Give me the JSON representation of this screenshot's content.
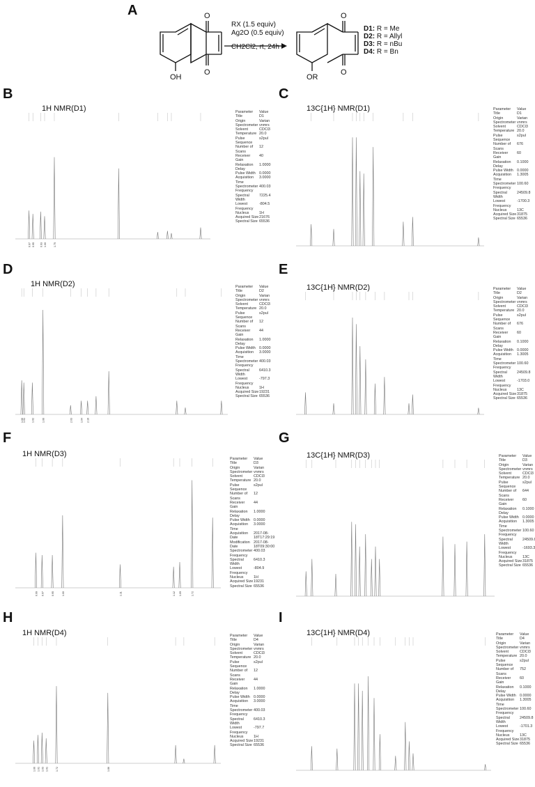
{
  "figure": {
    "panel_a": {
      "letter": "A",
      "reagent_line1": "RX (1.5 equiv)",
      "reagent_line2": "Ag2O (0.5 equiv)",
      "reagent_line3": "CH2Cl2, rt, 24h",
      "reactant_labels": {
        "o_top": "O",
        "o_bottom": "O",
        "oh": "OH"
      },
      "product_labels": {
        "o_top": "O",
        "o_bottom": "O",
        "or": "OR"
      },
      "products": [
        {
          "id": "D1:",
          "desc": "R = Me"
        },
        {
          "id": "D2:",
          "desc": "R = Allyl"
        },
        {
          "id": "D3:",
          "desc": "R = nBu"
        },
        {
          "id": "D4:",
          "desc": "R = Bn"
        }
      ]
    },
    "panels": [
      {
        "letter": "B",
        "title": "1H NMR(D1)",
        "params": [
          [
            "Parameter",
            "Value"
          ],
          [
            "Title",
            "D1"
          ],
          [
            "Origin",
            "Varian"
          ],
          [
            "Spectrometer",
            "vnmrs"
          ],
          [
            "Solvent",
            "CDCl3"
          ],
          [
            "Temperature",
            "20.0"
          ],
          [
            "Pulse Sequence",
            "s2pul"
          ],
          [
            "Number of Scans",
            "12"
          ],
          [
            "Receiver Gain",
            "40"
          ],
          [
            "Relaxation Delay",
            "1.0000"
          ],
          [
            "Pulse Width",
            "0.0000"
          ],
          [
            "Acquisition Time",
            "3.0000"
          ],
          [
            "Spectrometer Frequency",
            "400.03"
          ],
          [
            "Spectral Width",
            "7225.4"
          ],
          [
            "Lowest Frequency",
            "-804.5"
          ],
          [
            "Nucleus",
            "1H"
          ],
          [
            "Acquired Size",
            "21676"
          ],
          [
            "Spectral Size",
            "65536"
          ]
        ],
        "integrals": [
          "0.97",
          "0.95",
          "0.93",
          "1.00",
          "1.75"
        ]
      },
      {
        "letter": "C",
        "title": "13C{1H} NMR(D1)",
        "params": [
          [
            "Parameter",
            "Value"
          ],
          [
            "Title",
            "D1"
          ],
          [
            "Origin",
            "Varian"
          ],
          [
            "Spectrometer",
            "vnmrs"
          ],
          [
            "Solvent",
            "CDCl3"
          ],
          [
            "Temperature",
            "20.0"
          ],
          [
            "Pulse Sequence",
            "s2pul"
          ],
          [
            "Number of Scans",
            "676"
          ],
          [
            "Receiver Gain",
            "60"
          ],
          [
            "Relaxation Delay",
            "0.1000"
          ],
          [
            "Pulse Width",
            "0.0000"
          ],
          [
            "Acquisition Time",
            "1.3005"
          ],
          [
            "Spectrometer Frequency",
            "100.60"
          ],
          [
            "Spectral Width",
            "24509.8"
          ],
          [
            "Lowest Frequency",
            "-1700.3"
          ],
          [
            "Nucleus",
            "13C"
          ],
          [
            "Acquired Size",
            "31875"
          ],
          [
            "Spectral Size",
            "65536"
          ]
        ],
        "integrals": []
      },
      {
        "letter": "D",
        "title": "1H NMR(D2)",
        "params": [
          [
            "Parameter",
            "Value"
          ],
          [
            "Title",
            "D2"
          ],
          [
            "Origin",
            "Varian"
          ],
          [
            "Spectrometer",
            "vnmrs"
          ],
          [
            "Solvent",
            "CDCl3"
          ],
          [
            "Temperature",
            "20.0"
          ],
          [
            "Pulse Sequence",
            "s2pul"
          ],
          [
            "Number of Scans",
            "12"
          ],
          [
            "Receiver Gain",
            "44"
          ],
          [
            "Relaxation Delay",
            "1.0000"
          ],
          [
            "Pulse Width",
            "0.0000"
          ],
          [
            "Acquisition Time",
            "3.0000"
          ],
          [
            "Spectrometer Frequency",
            "400.03"
          ],
          [
            "Spectral Width",
            "6410.3"
          ],
          [
            "Lowest Frequency",
            "-797.3"
          ],
          [
            "Nucleus",
            "1H"
          ],
          [
            "Acquired Size",
            "19231"
          ],
          [
            "Spectral Size",
            "65536"
          ]
        ],
        "integrals": [
          "1.00",
          "1.01",
          "1.02",
          "1.00",
          "2.03",
          "1.04",
          "2.16"
        ]
      },
      {
        "letter": "E",
        "title": "13C{1H} NMR(D2)",
        "params": [
          [
            "Parameter",
            "Value"
          ],
          [
            "Title",
            "D2"
          ],
          [
            "Origin",
            "Varian"
          ],
          [
            "Spectrometer",
            "vnmrs"
          ],
          [
            "Solvent",
            "CDCl3"
          ],
          [
            "Temperature",
            "20.0"
          ],
          [
            "Pulse Sequence",
            "s2pul"
          ],
          [
            "Number of Scans",
            "676"
          ],
          [
            "Receiver Gain",
            "60"
          ],
          [
            "Relaxation Delay",
            "0.1000"
          ],
          [
            "Pulse Width",
            "0.0000"
          ],
          [
            "Acquisition Time",
            "1.3005"
          ],
          [
            "Spectrometer Frequency",
            "100.60"
          ],
          [
            "Spectral Width",
            "24509.8"
          ],
          [
            "Lowest Frequency",
            "-1703.0"
          ],
          [
            "Nucleus",
            "13C"
          ],
          [
            "Acquired Size",
            "31875"
          ],
          [
            "Spectral Size",
            "65536"
          ]
        ],
        "integrals": []
      },
      {
        "letter": "F",
        "title": "1H NMR(D3)",
        "params": [
          [
            "Parameter",
            "Value"
          ],
          [
            "Title",
            "D3"
          ],
          [
            "Origin",
            "Varian"
          ],
          [
            "Spectrometer",
            "vnmrs"
          ],
          [
            "Solvent",
            "CDCl3"
          ],
          [
            "Temperature",
            "20.0"
          ],
          [
            "Pulse Sequence",
            "s2pul"
          ],
          [
            "Number of Scans",
            "12"
          ],
          [
            "Receiver Gain",
            "44"
          ],
          [
            "Relaxation Delay",
            "1.0000"
          ],
          [
            "Pulse Width",
            "0.0000"
          ],
          [
            "Acquisition Time",
            "3.0000"
          ],
          [
            "Acquisition Date",
            "2017-08-18T17:29:19"
          ],
          [
            "Modification Date",
            "2017-08-18T09:30:00"
          ],
          [
            "Spectrometer Frequency",
            "400.03"
          ],
          [
            "Spectral Width",
            "6410.3"
          ],
          [
            "Lowest Frequency",
            "-804.9"
          ],
          [
            "Nucleus",
            "1H"
          ],
          [
            "Acquired Size",
            "19231"
          ],
          [
            "Spectral Size",
            "65536"
          ]
        ],
        "integrals": [
          "0.99",
          "0.97",
          "0.95",
          "1.00",
          "1.11",
          "1.12",
          "1.09",
          "1.72"
        ]
      },
      {
        "letter": "G",
        "title": "13C{1H} NMR(D3)",
        "params": [
          [
            "Parameter",
            "Value"
          ],
          [
            "Title",
            "D3"
          ],
          [
            "Origin",
            "Varian"
          ],
          [
            "Spectrometer",
            "vnmrs"
          ],
          [
            "Solvent",
            "CDCl3"
          ],
          [
            "Temperature",
            "20.0"
          ],
          [
            "Pulse Sequence",
            "s2pul"
          ],
          [
            "Number of Scans",
            "644"
          ],
          [
            "Receiver Gain",
            "60"
          ],
          [
            "Relaxation Delay",
            "0.1000"
          ],
          [
            "Pulse Width",
            "0.0000"
          ],
          [
            "Acquisition Time",
            "1.3005"
          ],
          [
            "Spectrometer Frequency",
            "100.60"
          ],
          [
            "Spectral Width",
            "24509.8"
          ],
          [
            "Lowest Frequency",
            "-1693.3"
          ],
          [
            "Nucleus",
            "13C"
          ],
          [
            "Acquired Size",
            "31875"
          ],
          [
            "Spectral Size",
            "65536"
          ]
        ],
        "integrals": []
      },
      {
        "letter": "H",
        "title": "1H NMR(D4)",
        "params": [
          [
            "Parameter",
            "Value"
          ],
          [
            "Title",
            "D4"
          ],
          [
            "Origin",
            "Varian"
          ],
          [
            "Spectrometer",
            "vnmrs"
          ],
          [
            "Solvent",
            "CDCl3"
          ],
          [
            "Temperature",
            "20.0"
          ],
          [
            "Pulse Sequence",
            "s2pul"
          ],
          [
            "Number of Scans",
            "12"
          ],
          [
            "Receiver Gain",
            "44"
          ],
          [
            "Relaxation Delay",
            "1.0000"
          ],
          [
            "Pulse Width",
            "0.0000"
          ],
          [
            "Acquisition Time",
            "3.0000"
          ],
          [
            "Spectrometer Frequency",
            "400.03"
          ],
          [
            "Spectral Width",
            "6410.3"
          ],
          [
            "Lowest Frequency",
            "-797.7"
          ],
          [
            "Nucleus",
            "1H"
          ],
          [
            "Acquired Size",
            "19231"
          ],
          [
            "Spectral Size",
            "65536"
          ]
        ],
        "integrals": [
          "1.00",
          "1.01",
          "1.03",
          "1.01",
          "1.72",
          "1.86"
        ]
      },
      {
        "letter": "I",
        "title": "13C{1H} NMR(D4)",
        "params": [
          [
            "Parameter",
            "Value"
          ],
          [
            "Title",
            "D4"
          ],
          [
            "Origin",
            "Varian"
          ],
          [
            "Spectrometer",
            "vnmrs"
          ],
          [
            "Solvent",
            "CDCl3"
          ],
          [
            "Temperature",
            "20.0"
          ],
          [
            "Pulse Sequence",
            "s2pul"
          ],
          [
            "Number of Scans",
            "752"
          ],
          [
            "Receiver Gain",
            "60"
          ],
          [
            "Relaxation Delay",
            "0.1000"
          ],
          [
            "Pulse Width",
            "0.0000"
          ],
          [
            "Acquisition Time",
            "1.3005"
          ],
          [
            "Spectrometer Frequency",
            "100.60"
          ],
          [
            "Spectral Width",
            "24509.8"
          ],
          [
            "Lowest Frequency",
            "-1701.3"
          ],
          [
            "Nucleus",
            "13C"
          ],
          [
            "Acquired Size",
            "31875"
          ],
          [
            "Spectral Size",
            "65536"
          ]
        ],
        "integrals": []
      }
    ]
  }
}
